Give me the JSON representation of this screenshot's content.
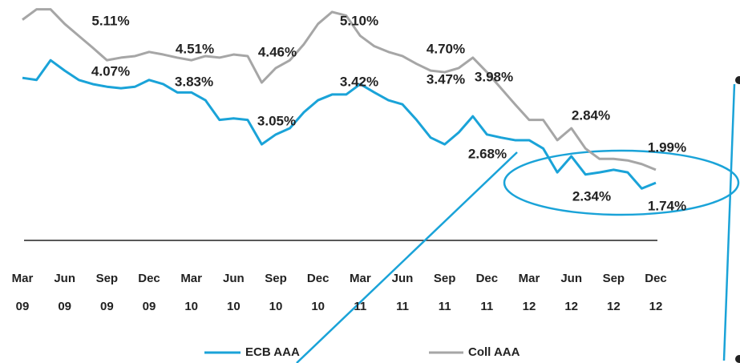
{
  "chart_data": {
    "type": "line",
    "categories": [
      "Mar 09",
      null,
      null,
      "Jun 09",
      null,
      null,
      "Sep 09",
      null,
      null,
      "Dec 09",
      null,
      null,
      "Mar 10",
      null,
      null,
      "Jun 10",
      null,
      null,
      "Sep 10",
      null,
      null,
      "Dec 10",
      null,
      null,
      "Mar 11",
      null,
      null,
      "Jun 11",
      null,
      null,
      "Sep 11",
      null,
      null,
      "Dec 11",
      null,
      null,
      "Mar 12",
      null,
      null,
      "Jun 12",
      null,
      null,
      "Sep 12",
      null,
      null,
      "Dec 12"
    ],
    "series": [
      {
        "name": "ECB AAA",
        "color": "#1aa3d8",
        "values": [
          3.76,
          3.72,
          4.1,
          3.9,
          3.72,
          3.64,
          3.59,
          3.56,
          3.59,
          3.72,
          3.64,
          3.48,
          3.48,
          3.33,
          2.95,
          2.98,
          2.95,
          2.48,
          2.67,
          2.79,
          3.1,
          3.33,
          3.44,
          3.44,
          3.64,
          3.48,
          3.33,
          3.25,
          2.95,
          2.61,
          2.48,
          2.71,
          3.02,
          2.67,
          2.61,
          2.56,
          2.56,
          2.4,
          1.94,
          2.25,
          1.9,
          1.94,
          1.99,
          1.94,
          1.63,
          1.74
        ]
      },
      {
        "name": "Coll AAA",
        "color": "#a6a6a6",
        "values": [
          4.88,
          5.08,
          5.08,
          4.8,
          4.57,
          4.34,
          4.1,
          4.15,
          4.18,
          4.26,
          4.21,
          4.15,
          4.1,
          4.18,
          4.15,
          4.21,
          4.18,
          3.67,
          3.95,
          4.1,
          4.41,
          4.8,
          5.03,
          4.96,
          4.57,
          4.37,
          4.26,
          4.18,
          4.03,
          3.9,
          3.87,
          3.95,
          4.15,
          3.87,
          3.56,
          3.25,
          2.95,
          2.95,
          2.56,
          2.79,
          2.4,
          2.2,
          2.2,
          2.17,
          2.1,
          1.99
        ]
      }
    ],
    "annotations": [
      "5.11%",
      "4.07%",
      "4.51%",
      "3.83%",
      "4.46%",
      "3.05%",
      "5.10%",
      "3.42%",
      "4.70%",
      "3.47%",
      "3.98%",
      "2.68%",
      "2.84%",
      "1.99%",
      "2.34%",
      "1.74%"
    ],
    "ylim": [
      0.63,
      5.26
    ]
  }
}
